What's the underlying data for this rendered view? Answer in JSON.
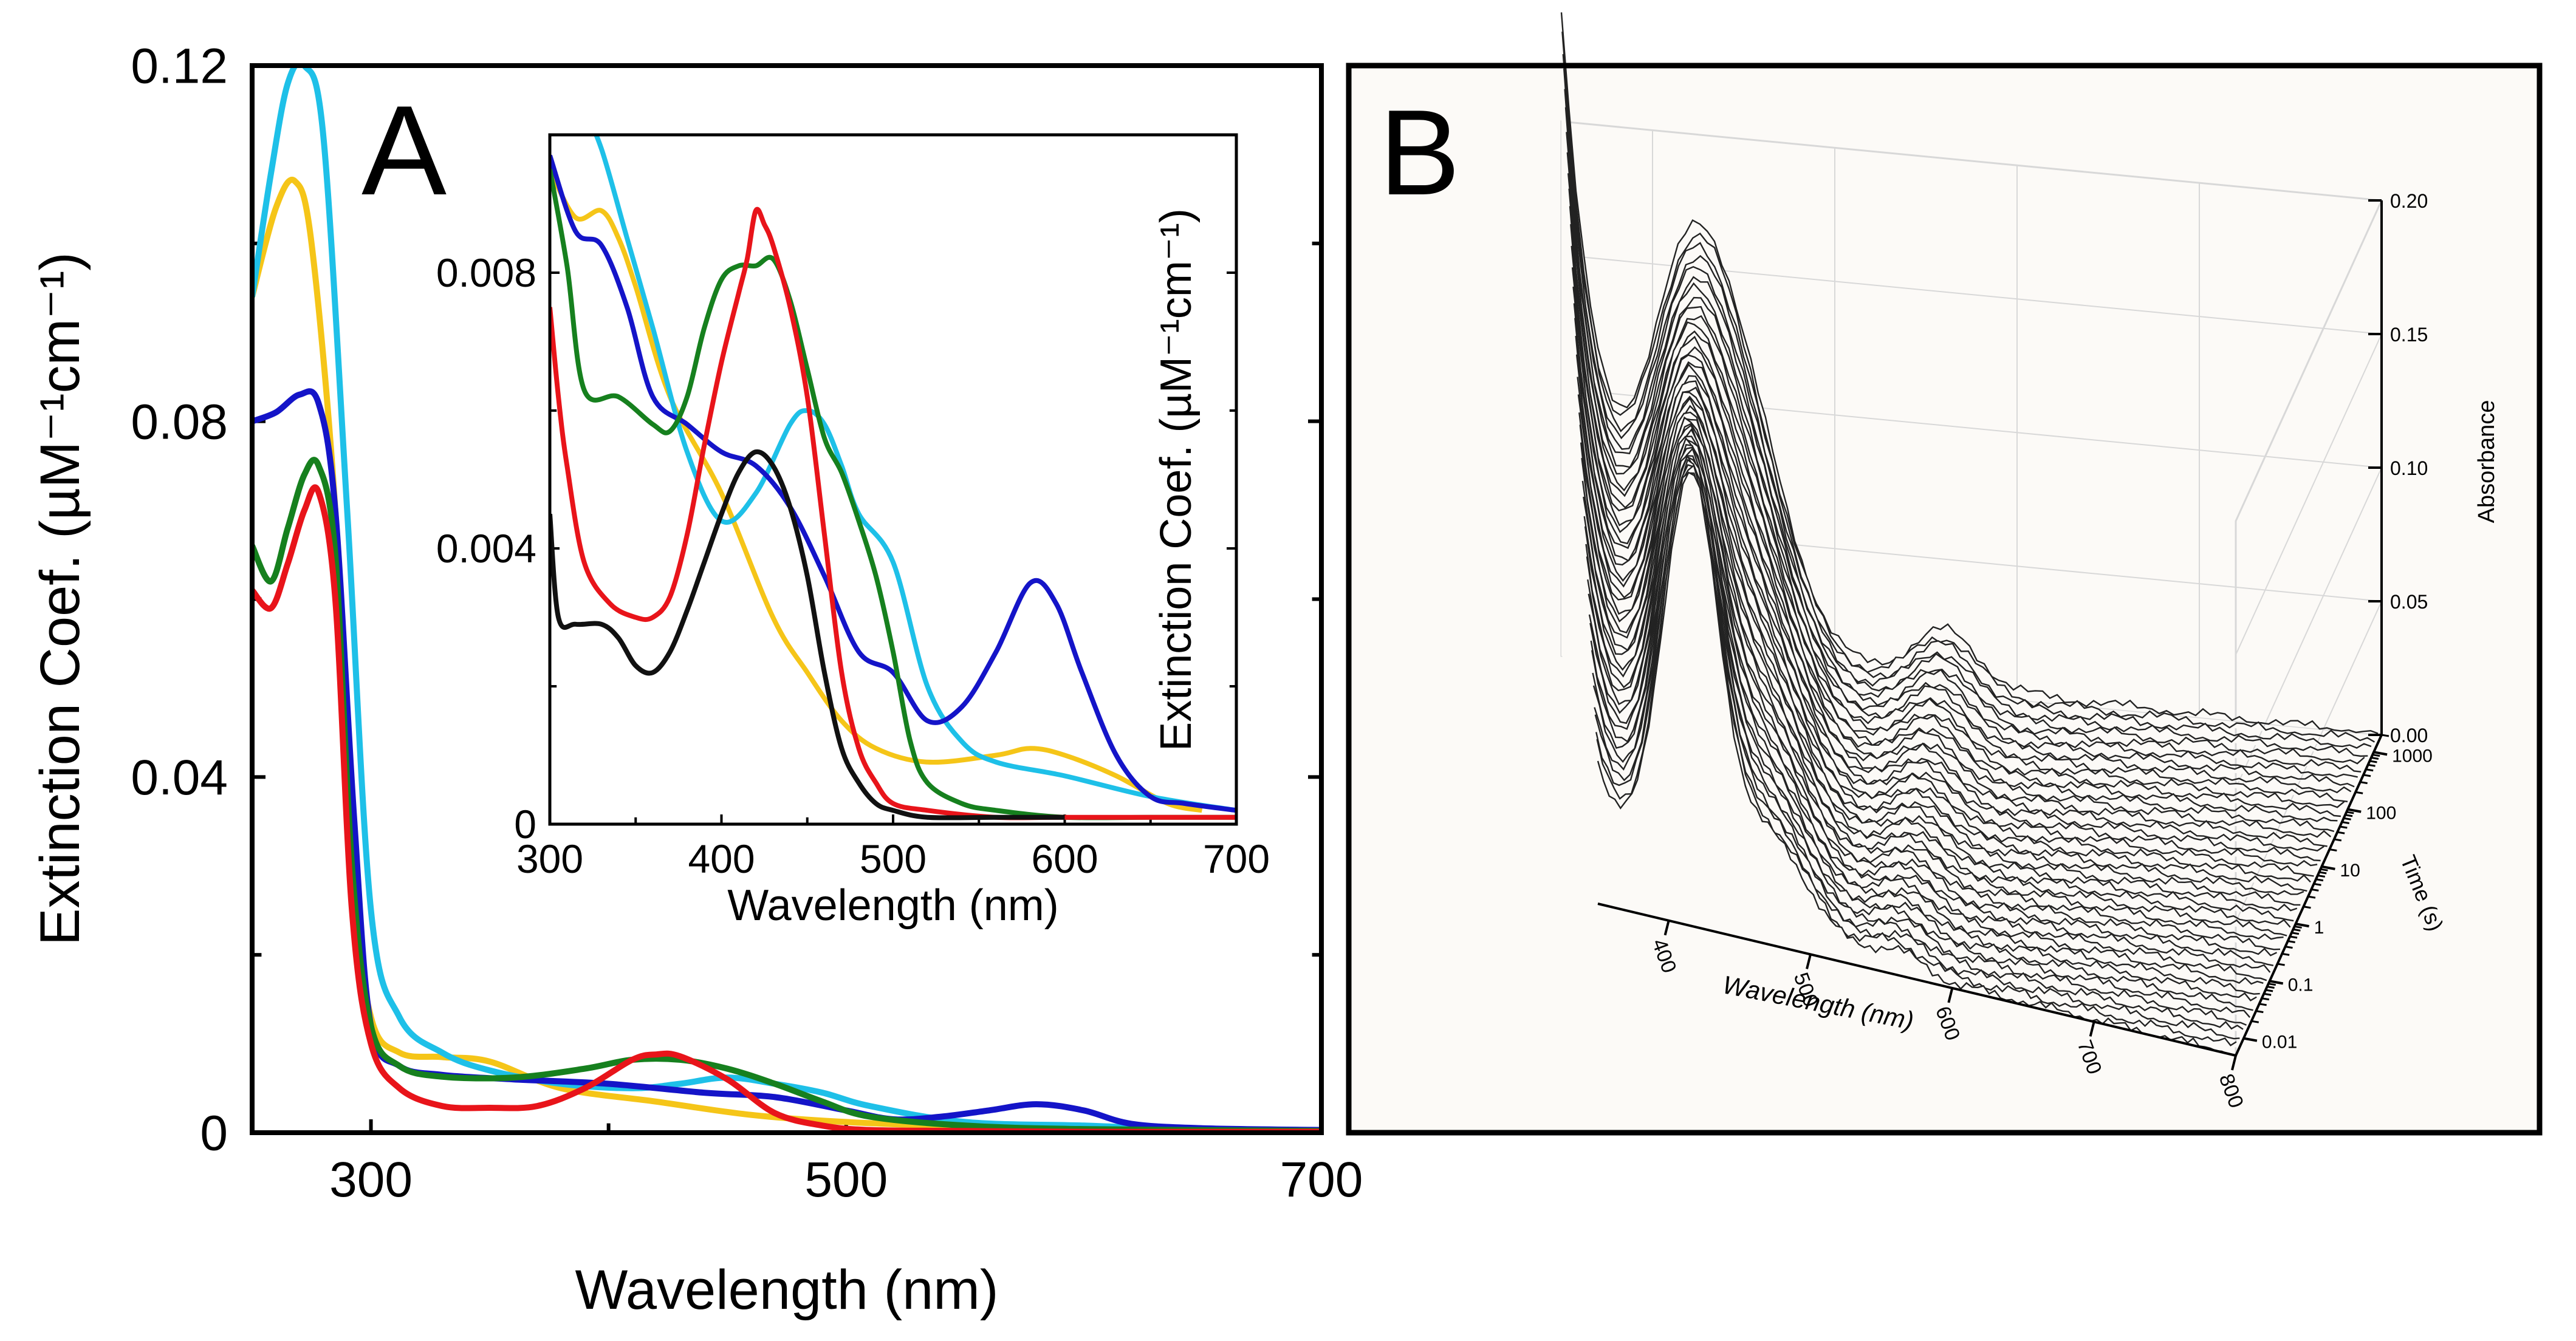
{
  "chart_data": [
    {
      "panel_label": "A",
      "type": "line",
      "xlabel": "Wavelength (nm)",
      "ylabel": "Extinction Coef. (µM⁻¹cm⁻¹)",
      "xlim": [
        250,
        700
      ],
      "ylim": [
        0,
        0.12
      ],
      "xticks": [
        "300",
        "500",
        "700"
      ],
      "yticks": [
        "0",
        "0.04",
        "0.08",
        "0.12"
      ],
      "series": [
        {
          "name": "yellow",
          "color": "#f5c518",
          "x": [
            250,
            260,
            268,
            275,
            285,
            292,
            300,
            312,
            330,
            350,
            380,
            420,
            460,
            500,
            550,
            600,
            650,
            700
          ],
          "y": [
            0.094,
            0.104,
            0.107,
            0.1,
            0.07,
            0.03,
            0.013,
            0.009,
            0.0085,
            0.008,
            0.005,
            0.0035,
            0.002,
            0.0012,
            0.0007,
            0.0005,
            0.0003,
            0.0002
          ]
        },
        {
          "name": "cyan",
          "color": "#1ec0e8",
          "x": [
            250,
            258,
            265,
            272,
            280,
            290,
            300,
            312,
            330,
            350,
            380,
            410,
            430,
            450,
            470,
            490,
            510,
            550,
            600,
            650,
            700
          ],
          "y": [
            0.094,
            0.108,
            0.118,
            0.12,
            0.112,
            0.07,
            0.025,
            0.013,
            0.009,
            0.007,
            0.0055,
            0.005,
            0.0055,
            0.0062,
            0.0055,
            0.0045,
            0.003,
            0.0012,
            0.0008,
            0.0003,
            0.0002
          ]
        },
        {
          "name": "blue",
          "color": "#1414c8",
          "x": [
            250,
            260,
            270,
            278,
            285,
            293,
            300,
            312,
            330,
            360,
            400,
            440,
            470,
            500,
            520,
            540,
            560,
            580,
            600,
            620,
            650,
            700
          ],
          "y": [
            0.08,
            0.081,
            0.083,
            0.082,
            0.07,
            0.035,
            0.012,
            0.0075,
            0.0065,
            0.006,
            0.0055,
            0.0045,
            0.004,
            0.0025,
            0.0015,
            0.0018,
            0.0025,
            0.0032,
            0.0025,
            0.001,
            0.0005,
            0.0003
          ]
        },
        {
          "name": "green",
          "color": "#16801e",
          "x": [
            250,
            258,
            265,
            272,
            278,
            285,
            292,
            300,
            312,
            330,
            360,
            390,
            410,
            430,
            450,
            470,
            490,
            510,
            550,
            600,
            700
          ],
          "y": [
            0.066,
            0.062,
            0.068,
            0.074,
            0.075,
            0.065,
            0.03,
            0.012,
            0.0075,
            0.0063,
            0.0062,
            0.0072,
            0.0082,
            0.0082,
            0.0072,
            0.0055,
            0.0035,
            0.0018,
            0.0008,
            0.0004,
            0.0002
          ]
        },
        {
          "name": "red",
          "color": "#e8141a",
          "x": [
            250,
            258,
            265,
            272,
            278,
            285,
            292,
            300,
            312,
            330,
            350,
            370,
            390,
            410,
            420,
            430,
            450,
            470,
            490,
            510,
            550,
            600,
            700
          ],
          "y": [
            0.061,
            0.059,
            0.064,
            0.07,
            0.072,
            0.06,
            0.025,
            0.01,
            0.005,
            0.003,
            0.0028,
            0.003,
            0.005,
            0.0082,
            0.0088,
            0.0086,
            0.006,
            0.0022,
            0.0008,
            0.0003,
            0.0002,
            0.0001,
            0.0001
          ]
        }
      ]
    },
    {
      "panel_label": "",
      "type": "line",
      "xlabel": "Wavelength (nm)",
      "ylabel": "Extinction Coef. (µM⁻¹cm⁻¹)",
      "xlim": [
        300,
        700
      ],
      "ylim": [
        0,
        0.01
      ],
      "xticks": [
        "300",
        "400",
        "500",
        "600",
        "700"
      ],
      "yticks": [
        "0",
        "0.004",
        "0.008"
      ],
      "series": [
        {
          "name": "yellow",
          "color": "#f5c518",
          "x": [
            300,
            315,
            330,
            340,
            350,
            370,
            400,
            430,
            450,
            470,
            490,
            520,
            560,
            580,
            600,
            630,
            660,
            680
          ],
          "y": [
            0.0095,
            0.0088,
            0.0089,
            0.0085,
            0.0078,
            0.0062,
            0.0048,
            0.003,
            0.0022,
            0.0015,
            0.0011,
            0.0009,
            0.001,
            0.0011,
            0.001,
            0.0007,
            0.0003,
            0.0002
          ]
        },
        {
          "name": "cyan",
          "color": "#1ec0e8",
          "x": [
            300,
            320,
            330,
            345,
            360,
            380,
            400,
            420,
            440,
            450,
            460,
            470,
            480,
            500,
            520,
            540,
            560,
            600,
            650,
            700
          ],
          "y": [
            0.011,
            0.0103,
            0.0098,
            0.0085,
            0.0072,
            0.0054,
            0.0044,
            0.0048,
            0.0058,
            0.006,
            0.0058,
            0.0052,
            0.0045,
            0.0038,
            0.002,
            0.0012,
            0.0009,
            0.0007,
            0.0004,
            0.0002
          ]
        },
        {
          "name": "blue",
          "color": "#1414c8",
          "x": [
            300,
            315,
            330,
            345,
            360,
            380,
            400,
            420,
            440,
            460,
            480,
            500,
            520,
            540,
            560,
            580,
            595,
            610,
            630,
            650,
            670,
            700
          ],
          "y": [
            0.0097,
            0.0086,
            0.0084,
            0.0075,
            0.0062,
            0.0058,
            0.0054,
            0.0052,
            0.0046,
            0.0036,
            0.0025,
            0.0022,
            0.0015,
            0.0017,
            0.0025,
            0.0035,
            0.0032,
            0.0022,
            0.001,
            0.0004,
            0.0003,
            0.0002
          ]
        },
        {
          "name": "green",
          "color": "#16801e",
          "x": [
            300,
            310,
            320,
            340,
            360,
            370,
            380,
            390,
            400,
            410,
            420,
            430,
            440,
            450,
            460,
            470,
            480,
            490,
            500,
            510,
            520,
            540,
            560,
            600,
            650,
            700
          ],
          "y": [
            0.0095,
            0.0081,
            0.0063,
            0.0062,
            0.0058,
            0.0057,
            0.0062,
            0.0072,
            0.0079,
            0.0081,
            0.0081,
            0.0082,
            0.0076,
            0.0066,
            0.0056,
            0.0051,
            0.0044,
            0.0036,
            0.0025,
            0.0012,
            0.0006,
            0.0003,
            0.0002,
            0.0001,
            0.0001,
            0.0001
          ]
        },
        {
          "name": "red",
          "color": "#e8141a",
          "x": [
            300,
            305,
            310,
            320,
            335,
            350,
            360,
            370,
            380,
            390,
            400,
            410,
            415,
            420,
            425,
            430,
            440,
            450,
            460,
            470,
            480,
            490,
            500,
            520,
            560,
            600,
            700
          ],
          "y": [
            0.0075,
            0.0062,
            0.0052,
            0.0038,
            0.0032,
            0.003,
            0.003,
            0.0033,
            0.0042,
            0.0055,
            0.0067,
            0.0077,
            0.0082,
            0.0089,
            0.0087,
            0.0084,
            0.0075,
            0.0062,
            0.0042,
            0.0022,
            0.0011,
            0.0006,
            0.0003,
            0.0002,
            0.0001,
            0.0001,
            0.0001
          ]
        },
        {
          "name": "black",
          "color": "#111111",
          "x": [
            300,
            305,
            315,
            330,
            340,
            350,
            360,
            370,
            380,
            390,
            400,
            410,
            420,
            430,
            440,
            450,
            460,
            470,
            480,
            490,
            500,
            520,
            560,
            600
          ],
          "y": [
            0.0045,
            0.003,
            0.0029,
            0.0029,
            0.0027,
            0.0023,
            0.0022,
            0.0025,
            0.0031,
            0.0038,
            0.0045,
            0.0051,
            0.0054,
            0.0052,
            0.0046,
            0.0036,
            0.0022,
            0.0011,
            0.0006,
            0.0003,
            0.0002,
            0.0001,
            0.0001,
            0.0001
          ]
        }
      ]
    },
    {
      "panel_label": "B",
      "type": "line",
      "chart_kind": "3d-waterfall",
      "xlabel": "Wavelength (nm)",
      "ylabel": "Time (s)",
      "zlabel": "Absorbance",
      "xlim": [
        350,
        800
      ],
      "zlim": [
        0,
        0.2
      ],
      "xticks": [
        "400",
        "500",
        "600",
        "700",
        "800"
      ],
      "yticks": [
        "0.01",
        "0.1",
        "1",
        "10",
        "100",
        "1000"
      ],
      "zticks": [
        "0.00",
        "0.05",
        "0.10",
        "0.15",
        "0.20"
      ],
      "trace_count": 44,
      "time_range_s": [
        0.005,
        2000
      ],
      "line_color": "#222222",
      "background_color": "#fcfaf7"
    }
  ]
}
